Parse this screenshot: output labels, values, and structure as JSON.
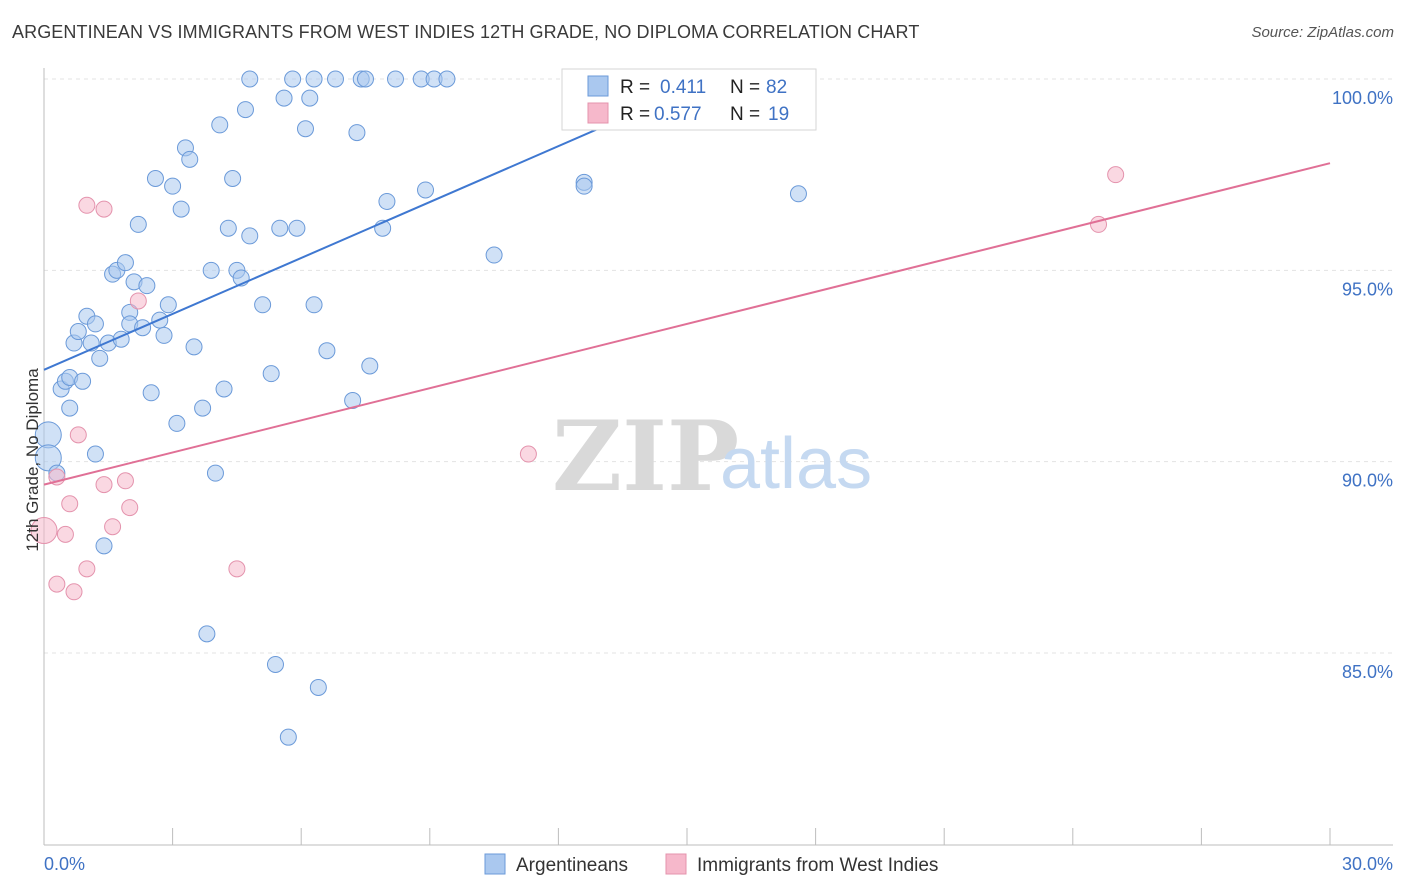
{
  "title": "ARGENTINEAN VS IMMIGRANTS FROM WEST INDIES 12TH GRADE, NO DIPLOMA CORRELATION CHART",
  "source": "Source: ZipAtlas.com",
  "watermark": {
    "zip": "ZIP",
    "atlas": "atlas"
  },
  "legend": {
    "r_label": "R =",
    "n_label": "N =",
    "rows": [
      {
        "r": "0.411",
        "n": "82",
        "color": "#aac8ef"
      },
      {
        "r": "0.577",
        "n": "19",
        "color": "#f6b8cb"
      }
    ]
  },
  "bottom_legend": [
    {
      "label": "Argentineans",
      "color": "#aac8ef"
    },
    {
      "label": "Immigrants from West Indies",
      "color": "#f6b8cb"
    }
  ],
  "colors": {
    "blue": "#3f78d1",
    "blue_fill": "#aac8ef",
    "pink": "#e07096",
    "pink_fill": "#f6b8cb",
    "axis_text": "#3f72c4",
    "grid": "#e3e3e3"
  },
  "chart_data": {
    "type": "scatter",
    "title": "ARGENTINEAN VS IMMIGRANTS FROM WEST INDIES 12TH GRADE, NO DIPLOMA CORRELATION CHART",
    "xlabel": "",
    "ylabel": "12th Grade, No Diploma",
    "xlim": [
      0,
      30
    ],
    "ylim": [
      80.5,
      100.5
    ],
    "x_tick_labels": [
      "0.0%",
      "30.0%"
    ],
    "y_ticks": [
      85,
      90,
      95,
      100
    ],
    "y_tick_labels": [
      "85.0%",
      "90.0%",
      "95.0%",
      "100.0%"
    ],
    "grid": true,
    "legend_position": "top-center",
    "series": [
      {
        "name": "Argentineans",
        "r": 0.411,
        "n": 82,
        "trend": {
          "x0": 0.0,
          "y0": 92.4,
          "x1": 15.6,
          "y1": 100.0
        },
        "points": [
          [
            0.1,
            90.7
          ],
          [
            0.1,
            90.1
          ],
          [
            0.3,
            89.7
          ],
          [
            0.4,
            91.9
          ],
          [
            0.5,
            92.1
          ],
          [
            0.6,
            91.4
          ],
          [
            0.6,
            92.2
          ],
          [
            0.7,
            93.1
          ],
          [
            0.8,
            93.4
          ],
          [
            0.9,
            92.1
          ],
          [
            1.0,
            93.8
          ],
          [
            1.1,
            93.1
          ],
          [
            1.2,
            93.6
          ],
          [
            1.2,
            90.2
          ],
          [
            1.3,
            92.7
          ],
          [
            1.4,
            87.8
          ],
          [
            1.5,
            93.1
          ],
          [
            1.6,
            94.9
          ],
          [
            1.7,
            95.0
          ],
          [
            1.8,
            93.2
          ],
          [
            1.9,
            95.2
          ],
          [
            2.0,
            93.9
          ],
          [
            2.0,
            93.6
          ],
          [
            2.1,
            94.7
          ],
          [
            2.2,
            96.2
          ],
          [
            2.3,
            93.5
          ],
          [
            2.4,
            94.6
          ],
          [
            2.5,
            91.8
          ],
          [
            2.6,
            97.4
          ],
          [
            2.7,
            93.7
          ],
          [
            2.8,
            93.3
          ],
          [
            2.9,
            94.1
          ],
          [
            3.0,
            97.2
          ],
          [
            3.1,
            91.0
          ],
          [
            3.2,
            96.6
          ],
          [
            3.3,
            98.2
          ],
          [
            3.4,
            97.9
          ],
          [
            3.5,
            93.0
          ],
          [
            3.7,
            91.4
          ],
          [
            3.8,
            85.5
          ],
          [
            3.9,
            95.0
          ],
          [
            4.0,
            89.7
          ],
          [
            4.1,
            98.8
          ],
          [
            4.2,
            91.9
          ],
          [
            4.3,
            96.1
          ],
          [
            4.4,
            97.4
          ],
          [
            4.5,
            95.0
          ],
          [
            4.6,
            94.8
          ],
          [
            4.7,
            99.2
          ],
          [
            4.8,
            95.9
          ],
          [
            4.8,
            100.0
          ],
          [
            5.1,
            94.1
          ],
          [
            5.3,
            92.3
          ],
          [
            5.4,
            84.7
          ],
          [
            5.5,
            96.1
          ],
          [
            5.6,
            99.5
          ],
          [
            5.7,
            82.8
          ],
          [
            5.8,
            100.0
          ],
          [
            5.9,
            96.1
          ],
          [
            6.1,
            98.7
          ],
          [
            6.2,
            99.5
          ],
          [
            6.3,
            100.0
          ],
          [
            6.3,
            94.1
          ],
          [
            6.4,
            84.1
          ],
          [
            6.6,
            92.9
          ],
          [
            6.8,
            100.0
          ],
          [
            7.2,
            91.6
          ],
          [
            7.3,
            98.6
          ],
          [
            7.4,
            100.0
          ],
          [
            7.5,
            100.0
          ],
          [
            7.6,
            92.5
          ],
          [
            7.9,
            96.1
          ],
          [
            8.0,
            96.8
          ],
          [
            8.2,
            100.0
          ],
          [
            8.8,
            100.0
          ],
          [
            8.9,
            97.1
          ],
          [
            9.1,
            100.0
          ],
          [
            9.4,
            100.0
          ],
          [
            10.5,
            95.4
          ],
          [
            12.6,
            97.3
          ],
          [
            12.6,
            97.2
          ],
          [
            17.6,
            97.0
          ]
        ]
      },
      {
        "name": "Immigrants from West Indies",
        "r": 0.577,
        "n": 19,
        "trend": {
          "x0": 0.0,
          "y0": 89.4,
          "x1": 30.0,
          "y1": 97.8
        },
        "points": [
          [
            0.0,
            88.2
          ],
          [
            0.3,
            89.6
          ],
          [
            0.3,
            86.8
          ],
          [
            0.5,
            88.1
          ],
          [
            0.6,
            88.9
          ],
          [
            0.7,
            86.6
          ],
          [
            0.8,
            90.7
          ],
          [
            1.0,
            96.7
          ],
          [
            1.0,
            87.2
          ],
          [
            1.4,
            89.4
          ],
          [
            1.4,
            96.6
          ],
          [
            1.6,
            88.3
          ],
          [
            1.9,
            89.5
          ],
          [
            2.0,
            88.8
          ],
          [
            2.2,
            94.2
          ],
          [
            4.5,
            87.2
          ],
          [
            11.3,
            90.2
          ],
          [
            24.6,
            96.2
          ],
          [
            25.0,
            97.5
          ]
        ]
      }
    ]
  }
}
